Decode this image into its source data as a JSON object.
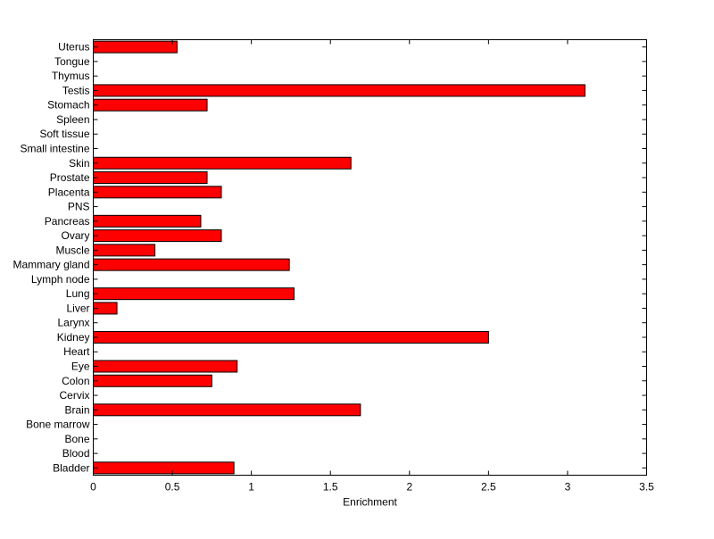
{
  "chart_data": {
    "type": "bar",
    "orientation": "horizontal",
    "xlabel": "Enrichment",
    "ylabel": "",
    "title": "",
    "xlim": [
      0,
      3.5
    ],
    "x_ticks": [
      0,
      0.5,
      1,
      1.5,
      2,
      2.5,
      3,
      3.5
    ],
    "x_tick_labels": [
      "0",
      "0.5",
      "1",
      "1.5",
      "2",
      "2.5",
      "3",
      "3.5"
    ],
    "grid": false,
    "bar_color": "#ff0000",
    "bar_edge_color": "#000000",
    "categories": [
      "Uterus",
      "Tongue",
      "Thymus",
      "Testis",
      "Stomach",
      "Spleen",
      "Soft tissue",
      "Small intestine",
      "Skin",
      "Prostate",
      "Placenta",
      "PNS",
      "Pancreas",
      "Ovary",
      "Muscle",
      "Mammary gland",
      "Lymph node",
      "Lung",
      "Liver",
      "Larynx",
      "Kidney",
      "Heart",
      "Eye",
      "Colon",
      "Cervix",
      "Brain",
      "Bone marrow",
      "Bone",
      "Blood",
      "Bladder"
    ],
    "values": [
      0.53,
      0,
      0,
      3.11,
      0.72,
      0,
      0,
      0,
      1.63,
      0.72,
      0.81,
      0,
      0.68,
      0.81,
      0.39,
      1.24,
      0,
      1.27,
      0.15,
      0,
      2.5,
      0,
      0.91,
      0.75,
      0,
      1.69,
      0,
      0,
      0,
      0.89
    ]
  }
}
